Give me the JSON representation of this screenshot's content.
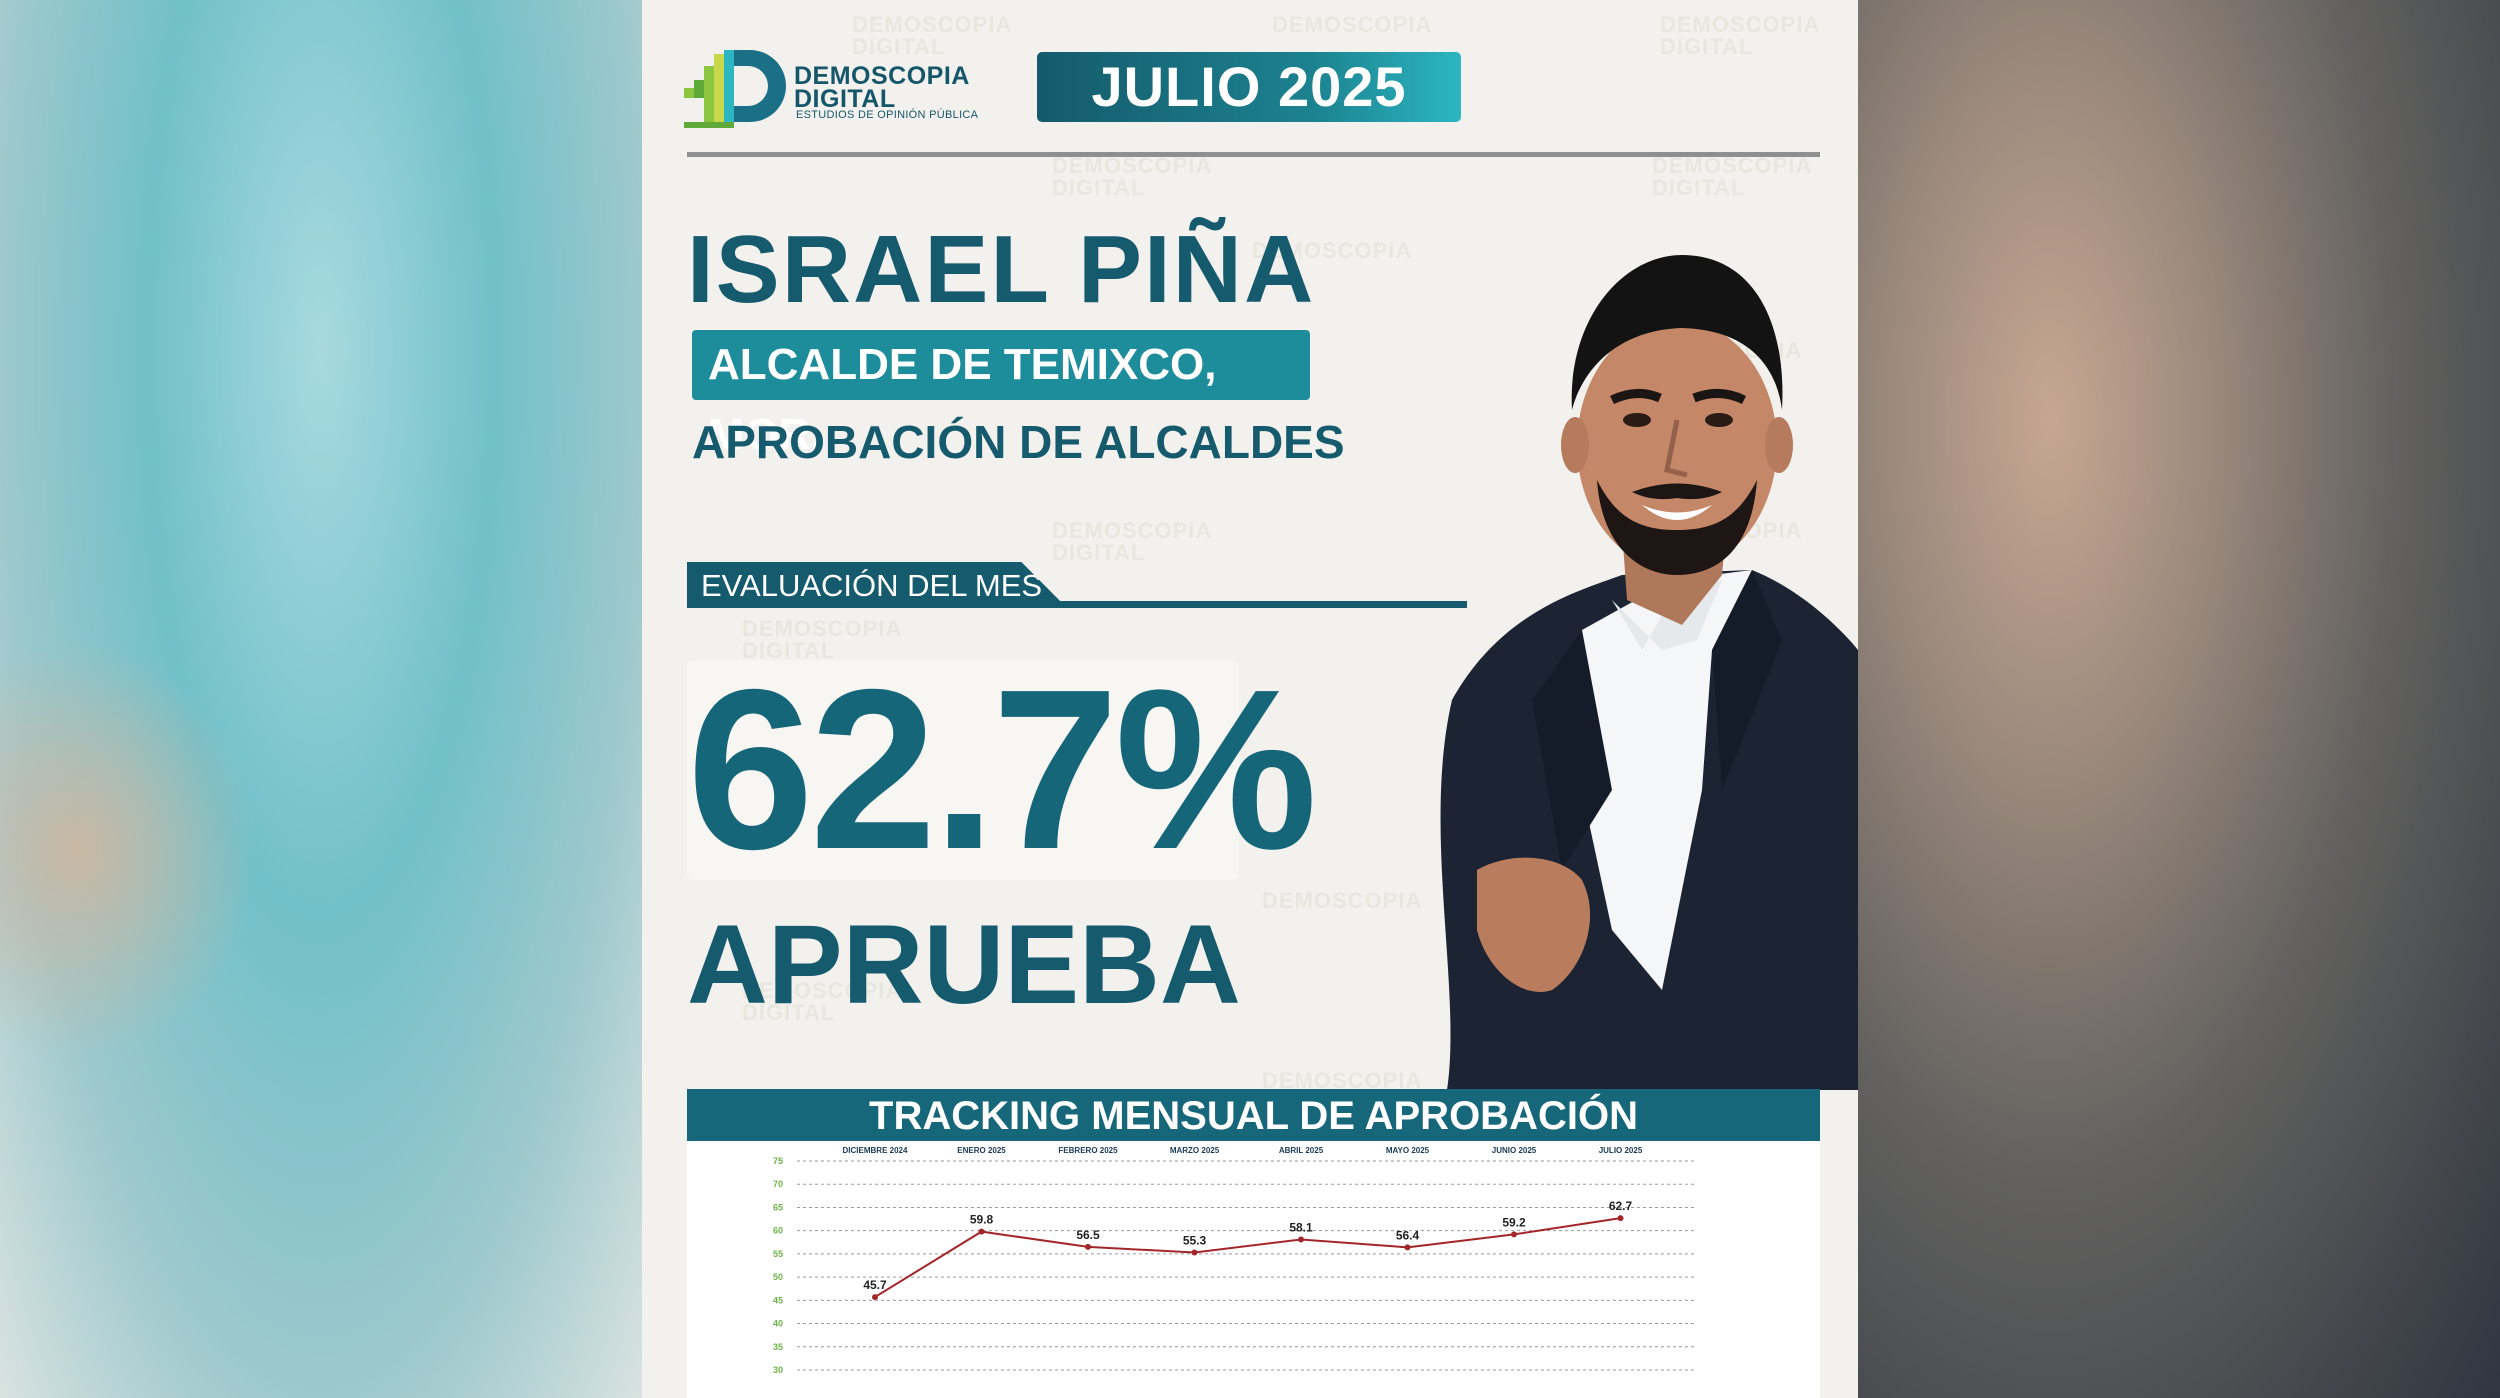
{
  "brand": {
    "name_line1": "DEMOSCOPIA",
    "name_line2": "DIGITAL",
    "tagline": "ESTUDIOS DE OPINIÓN PÚBLICA"
  },
  "period": "JULIO 2025",
  "person": {
    "name": "ISRAEL PIÑA",
    "role": "ALCALDE DE TEMIXCO, MOR."
  },
  "subtitle": "APROBACIÓN DE ALCALDES",
  "evaluation": {
    "label": "EVALUACIÓN DEL MES",
    "value": "62.7%",
    "verdict": "APRUEBA"
  },
  "colors": {
    "brand_dark": "#165a6e",
    "brand_teal": "#1e8d9b",
    "line": "#a3262a",
    "axis_text": "#6fb24a"
  },
  "chart_data": {
    "type": "line",
    "title": "TRACKING MENSUAL DE APROBACIÓN",
    "categories": [
      "DICIEMBRE 2024",
      "ENERO 2025",
      "FEBRERO 2025",
      "MARZO 2025",
      "ABRIL 2025",
      "MAYO 2025",
      "JUNIO 2025",
      "JULIO 2025"
    ],
    "series": [
      {
        "values": [
          45.7,
          59.8,
          56.5,
          55.3,
          58.1,
          56.4,
          59.2,
          62.7
        ]
      }
    ],
    "y_ticks": [
      75,
      70,
      65,
      60,
      55,
      50,
      45,
      40,
      35,
      30
    ],
    "ylim": [
      30,
      75
    ],
    "grid": true,
    "legend": "none"
  }
}
